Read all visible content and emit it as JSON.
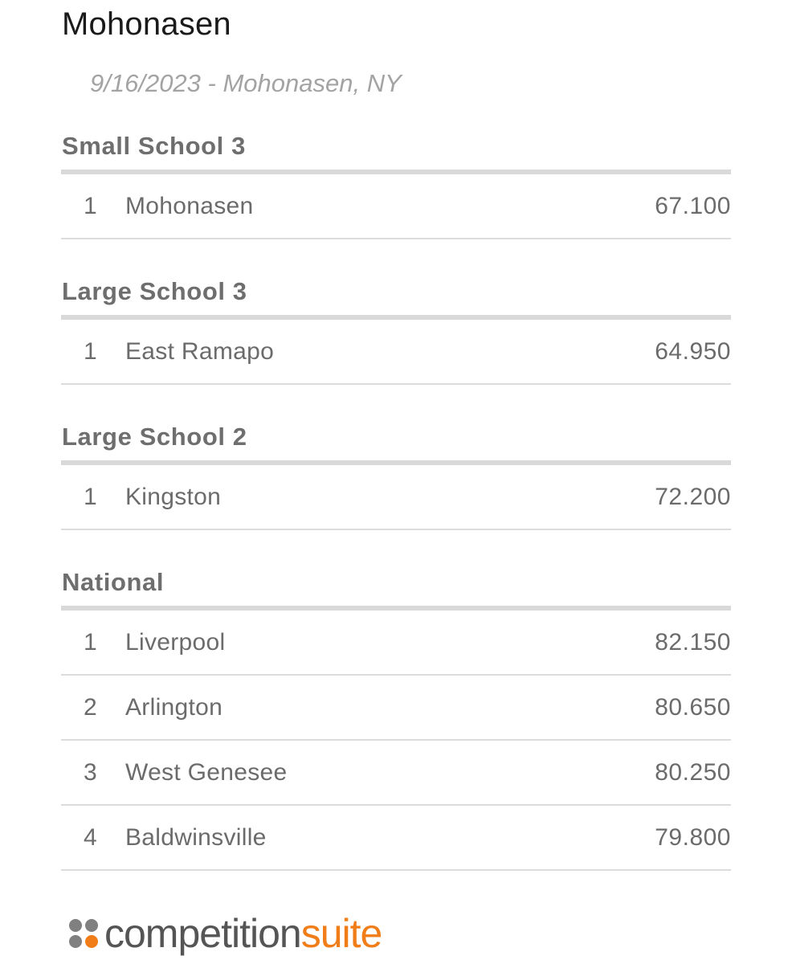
{
  "event": {
    "title": "Mohonasen",
    "date_location": "9/16/2023 - Mohonasen, NY"
  },
  "divisions": [
    {
      "name": "Small School 3",
      "results": [
        {
          "rank": "1",
          "school": "Mohonasen",
          "score": "67.100"
        }
      ]
    },
    {
      "name": "Large School 3",
      "results": [
        {
          "rank": "1",
          "school": "East Ramapo",
          "score": "64.950"
        }
      ]
    },
    {
      "name": "Large School 2",
      "results": [
        {
          "rank": "1",
          "school": "Kingston",
          "score": "72.200"
        }
      ]
    },
    {
      "name": "National",
      "results": [
        {
          "rank": "1",
          "school": "Liverpool",
          "score": "82.150"
        },
        {
          "rank": "2",
          "school": "Arlington",
          "score": "80.650"
        },
        {
          "rank": "3",
          "school": "West Genesee",
          "score": "80.250"
        },
        {
          "rank": "4",
          "school": "Baldwinsville",
          "score": "79.800"
        }
      ]
    }
  ],
  "footer": {
    "brand_part1": "competition",
    "brand_part2": "suite",
    "logo_icon": "four-dots-logo-icon",
    "colors": {
      "brand_gray": "#555555",
      "brand_orange": "#f07d18"
    }
  }
}
